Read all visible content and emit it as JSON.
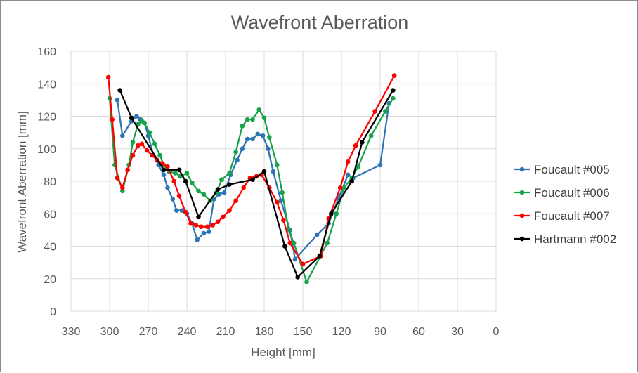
{
  "chart_data": {
    "type": "line",
    "title": "Wavefront Aberration",
    "xlabel": "Height [mm]",
    "ylabel": "Wavefront Aberration [mm]",
    "xlim": [
      330,
      0
    ],
    "ylim": [
      0,
      160
    ],
    "xticks": [
      330,
      300,
      270,
      240,
      210,
      180,
      150,
      120,
      90,
      60,
      30,
      0
    ],
    "yticks": [
      0,
      20,
      40,
      60,
      80,
      100,
      120,
      140,
      160
    ],
    "grid": true,
    "legend_position": "right",
    "series": [
      {
        "name": "Foucault #005",
        "color": "#2f75b5",
        "points": [
          [
            294,
            130
          ],
          [
            290,
            108
          ],
          [
            283,
            117
          ],
          [
            279,
            120
          ],
          [
            276,
            118
          ],
          [
            273,
            116
          ],
          [
            270,
            108
          ],
          [
            266,
            96
          ],
          [
            262,
            90
          ],
          [
            258,
            84
          ],
          [
            255,
            76
          ],
          [
            251,
            69
          ],
          [
            248,
            62
          ],
          [
            244,
            62
          ],
          [
            240,
            60
          ],
          [
            236,
            54
          ],
          [
            232,
            44
          ],
          [
            227,
            48
          ],
          [
            223,
            49
          ],
          [
            219,
            69
          ],
          [
            215,
            72
          ],
          [
            211,
            73
          ],
          [
            206,
            84
          ],
          [
            201,
            93
          ],
          [
            197,
            100
          ],
          [
            193,
            106
          ],
          [
            189,
            106
          ],
          [
            185,
            109
          ],
          [
            181,
            108
          ],
          [
            177,
            100
          ],
          [
            173,
            86
          ],
          [
            167,
            68
          ],
          [
            160,
            50
          ],
          [
            156,
            32
          ],
          [
            139,
            47
          ],
          [
            130,
            54
          ],
          [
            122,
            70
          ],
          [
            115,
            84
          ],
          [
            111,
            82
          ],
          [
            90,
            90
          ],
          [
            83,
            128
          ]
        ]
      },
      {
        "name": "Foucault #006",
        "color": "#16a34a",
        "points": [
          [
            300,
            131
          ],
          [
            296,
            90
          ],
          [
            290,
            74
          ],
          [
            285,
            90
          ],
          [
            282,
            104
          ],
          [
            278,
            115
          ],
          [
            275,
            117
          ],
          [
            273,
            116
          ],
          [
            269,
            110
          ],
          [
            265,
            103
          ],
          [
            261,
            96
          ],
          [
            258,
            90
          ],
          [
            254,
            86
          ],
          [
            249,
            85
          ],
          [
            245,
            83
          ],
          [
            240,
            85
          ],
          [
            236,
            79
          ],
          [
            231,
            74
          ],
          [
            227,
            72
          ],
          [
            222,
            68
          ],
          [
            217,
            73
          ],
          [
            213,
            81
          ],
          [
            207,
            85
          ],
          [
            202,
            98
          ],
          [
            197,
            114
          ],
          [
            193,
            118
          ],
          [
            189,
            118
          ],
          [
            184,
            124
          ],
          [
            180,
            119
          ],
          [
            176,
            107
          ],
          [
            170,
            90
          ],
          [
            166,
            73
          ],
          [
            161,
            50
          ],
          [
            157,
            42
          ],
          [
            147,
            18
          ],
          [
            131,
            42
          ],
          [
            124,
            60
          ],
          [
            118,
            76
          ],
          [
            112,
            82
          ],
          [
            107,
            89
          ],
          [
            97,
            108
          ],
          [
            86,
            123
          ],
          [
            80,
            131
          ]
        ]
      },
      {
        "name": "Foucault #007",
        "color": "#ff0000",
        "points": [
          [
            301,
            144
          ],
          [
            298,
            118
          ],
          [
            294,
            82
          ],
          [
            290,
            76
          ],
          [
            286,
            87
          ],
          [
            282,
            96
          ],
          [
            278,
            102
          ],
          [
            275,
            103
          ],
          [
            271,
            99
          ],
          [
            267,
            96
          ],
          [
            263,
            93
          ],
          [
            259,
            91
          ],
          [
            255,
            89
          ],
          [
            250,
            80
          ],
          [
            246,
            71
          ],
          [
            241,
            61
          ],
          [
            237,
            54
          ],
          [
            233,
            53
          ],
          [
            229,
            52
          ],
          [
            224,
            52
          ],
          [
            220,
            53
          ],
          [
            216,
            55
          ],
          [
            212,
            58
          ],
          [
            207,
            62
          ],
          [
            202,
            68
          ],
          [
            196,
            76
          ],
          [
            191,
            82
          ],
          [
            186,
            83
          ],
          [
            182,
            84
          ],
          [
            176,
            76
          ],
          [
            170,
            67
          ],
          [
            165,
            56
          ],
          [
            160,
            42
          ],
          [
            150,
            29
          ],
          [
            136,
            34
          ],
          [
            130,
            57
          ],
          [
            121,
            76
          ],
          [
            115,
            92
          ],
          [
            109,
            102
          ],
          [
            94,
            123
          ],
          [
            79,
            145
          ]
        ]
      },
      {
        "name": "Hartmann #002",
        "color": "#000000",
        "points": [
          [
            292,
            136
          ],
          [
            283,
            119
          ],
          [
            258,
            87
          ],
          [
            246,
            87
          ],
          [
            241,
            80
          ],
          [
            231,
            58
          ],
          [
            216,
            75
          ],
          [
            207,
            78
          ],
          [
            189,
            81
          ],
          [
            180,
            86
          ],
          [
            164,
            40
          ],
          [
            154,
            21
          ],
          [
            137,
            34
          ],
          [
            128,
            60
          ],
          [
            112,
            80
          ],
          [
            104,
            104
          ],
          [
            80,
            136
          ]
        ]
      }
    ]
  }
}
